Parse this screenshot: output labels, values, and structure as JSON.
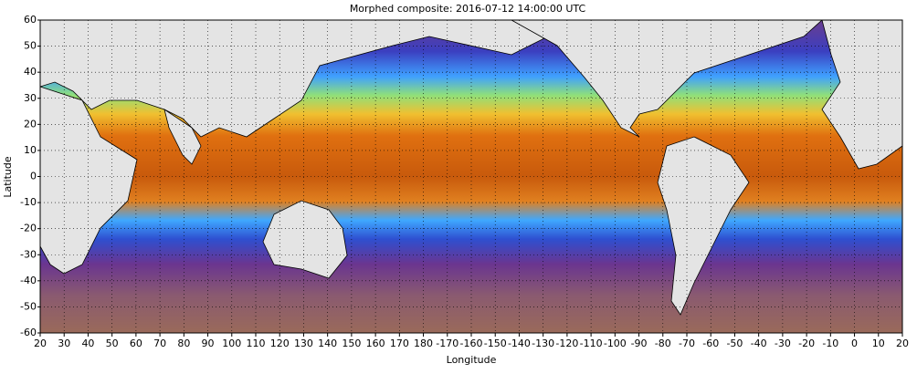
{
  "map": {
    "title": "Morphed composite: 2016-07-12 14:00:00 UTC",
    "xlabel": "Longitude",
    "ylabel": "Latitude",
    "lon_ticks": [
      20,
      30,
      40,
      50,
      60,
      70,
      80,
      90,
      100,
      110,
      120,
      130,
      140,
      150,
      160,
      170,
      180,
      -170,
      -160,
      -150,
      -140,
      -130,
      -120,
      -110,
      -100,
      -90,
      -80,
      -70,
      -60,
      -50,
      -40,
      -30,
      -20,
      -10,
      0,
      10,
      20
    ],
    "lat_ticks": [
      60,
      50,
      40,
      30,
      20,
      10,
      0,
      -10,
      -20,
      -30,
      -40,
      -50,
      -60
    ]
  }
}
